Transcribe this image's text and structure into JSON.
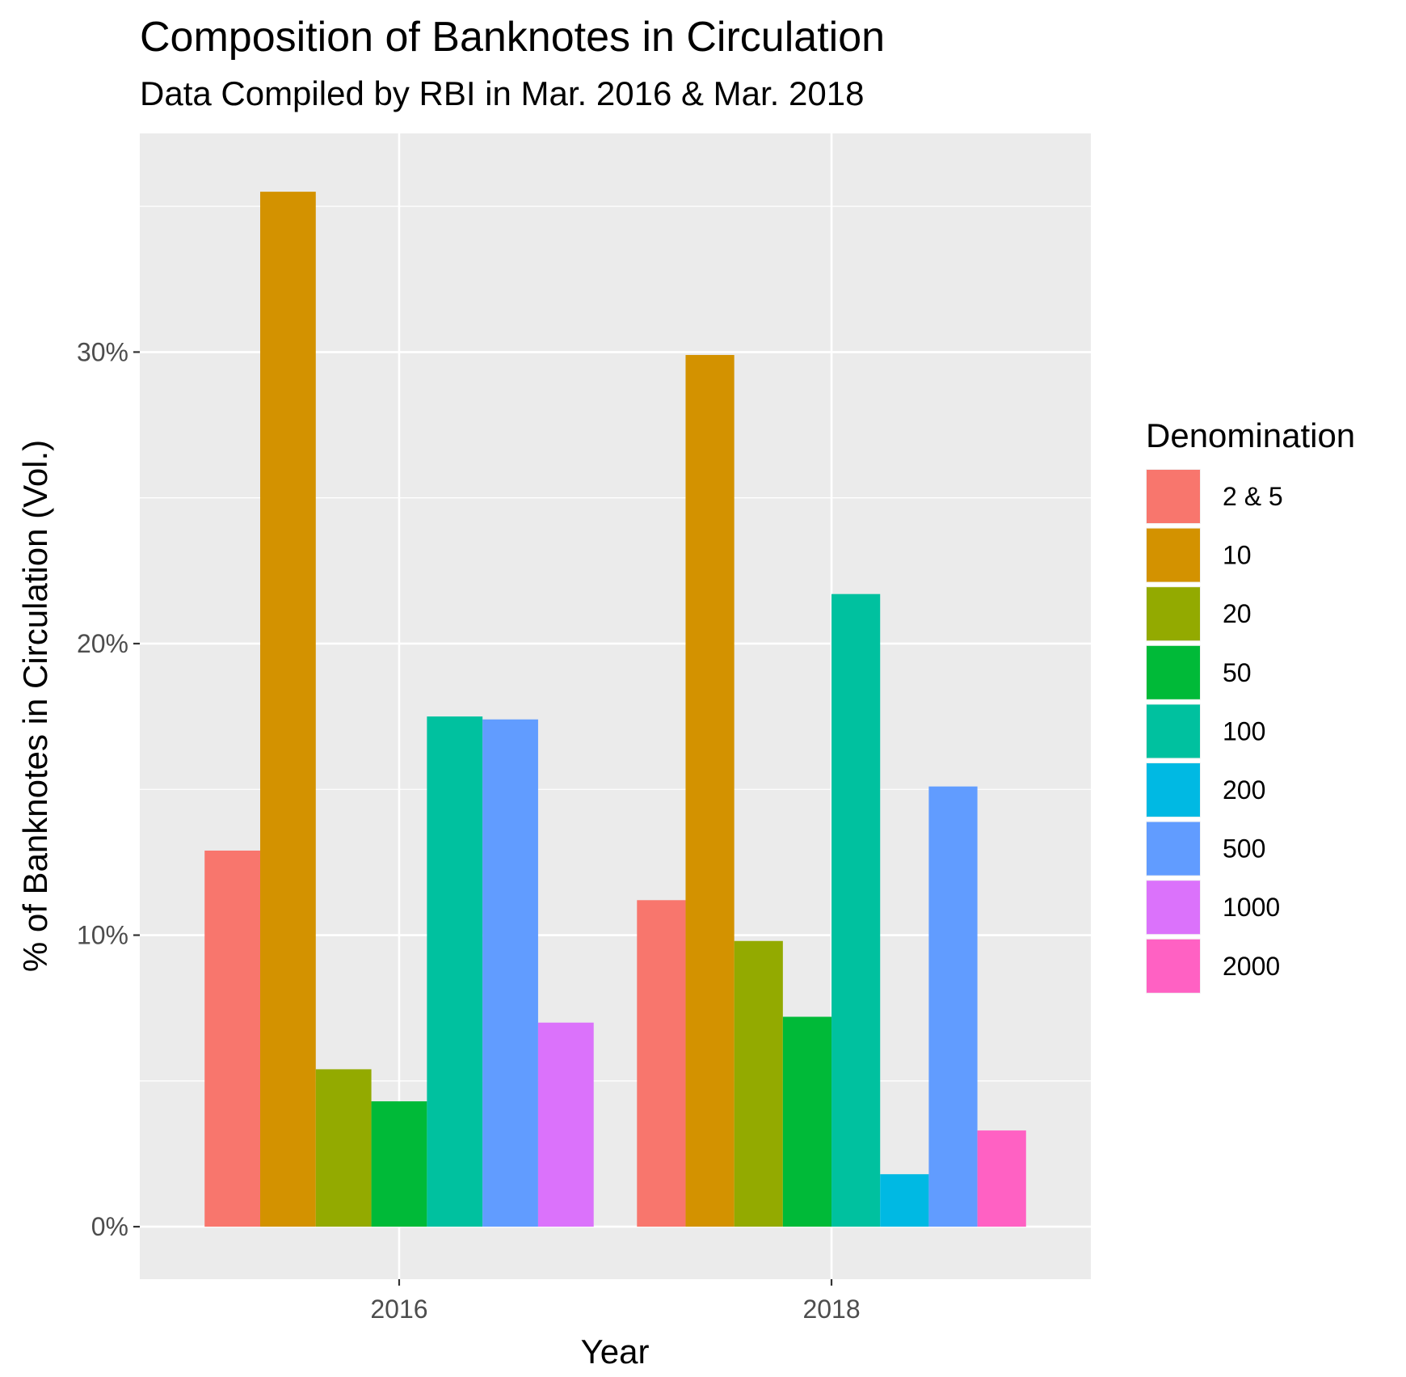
{
  "chart_data": {
    "type": "bar",
    "title": "Composition of Banknotes in Circulation",
    "subtitle": "Data Compiled by RBI in Mar. 2016 & Mar. 2018",
    "xlabel": "Year",
    "ylabel": "% of Banknotes in Circulation (Vol.)",
    "categories": [
      "2016",
      "2018"
    ],
    "ylim": [
      -1.8,
      37.5
    ],
    "yticks": [
      0,
      10,
      20,
      30
    ],
    "ytick_labels": [
      "0%",
      "10%",
      "20%",
      "30%"
    ],
    "grid": true,
    "legend": {
      "title": "Denomination",
      "position": "right"
    },
    "series": [
      {
        "name": "2 & 5",
        "color": "#F8766D",
        "values": [
          12.9,
          11.2
        ]
      },
      {
        "name": "10",
        "color": "#D39200",
        "values": [
          35.5,
          29.9
        ]
      },
      {
        "name": "20",
        "color": "#93AA00",
        "values": [
          5.4,
          9.8
        ]
      },
      {
        "name": "50",
        "color": "#00BA38",
        "values": [
          4.3,
          7.2
        ]
      },
      {
        "name": "100",
        "color": "#00C19F",
        "values": [
          17.5,
          21.7
        ]
      },
      {
        "name": "200",
        "color": "#00B9E3",
        "values": [
          null,
          1.8
        ]
      },
      {
        "name": "500",
        "color": "#619CFF",
        "values": [
          17.4,
          15.1
        ]
      },
      {
        "name": "1000",
        "color": "#DB72FB",
        "values": [
          7.0,
          null
        ]
      },
      {
        "name": "2000",
        "color": "#FF61C3",
        "values": [
          null,
          3.3
        ]
      }
    ]
  }
}
